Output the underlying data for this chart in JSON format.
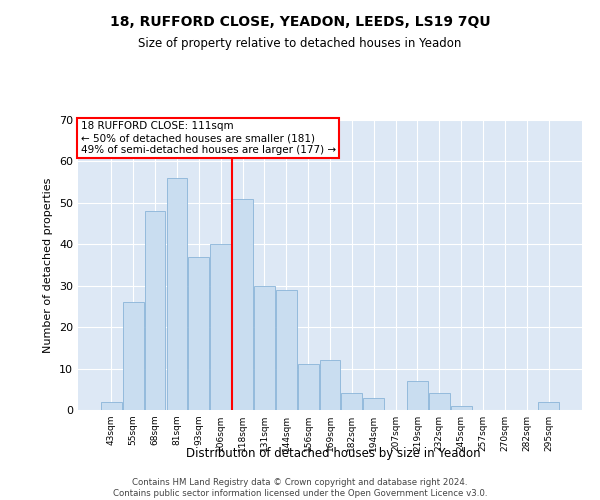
{
  "title1": "18, RUFFORD CLOSE, YEADON, LEEDS, LS19 7QU",
  "title2": "Size of property relative to detached houses in Yeadon",
  "xlabel": "Distribution of detached houses by size in Yeadon",
  "ylabel": "Number of detached properties",
  "categories": [
    "43sqm",
    "55sqm",
    "68sqm",
    "81sqm",
    "93sqm",
    "106sqm",
    "118sqm",
    "131sqm",
    "144sqm",
    "156sqm",
    "169sqm",
    "182sqm",
    "194sqm",
    "207sqm",
    "219sqm",
    "232sqm",
    "245sqm",
    "257sqm",
    "270sqm",
    "282sqm",
    "295sqm"
  ],
  "values": [
    2,
    26,
    48,
    56,
    37,
    40,
    51,
    30,
    29,
    11,
    12,
    4,
    3,
    0,
    7,
    4,
    1,
    0,
    0,
    0,
    2
  ],
  "bar_color": "#c9ddf0",
  "bar_edge_color": "#8ab4d8",
  "background_color": "#dde8f5",
  "annotation_line1": "18 RUFFORD CLOSE: 111sqm",
  "annotation_line2": "← 50% of detached houses are smaller (181)",
  "annotation_line3": "49% of semi-detached houses are larger (177) →",
  "vline_color": "red",
  "vline_x": 5.5,
  "ylim": [
    0,
    70
  ],
  "yticks": [
    0,
    10,
    20,
    30,
    40,
    50,
    60,
    70
  ],
  "footer1": "Contains HM Land Registry data © Crown copyright and database right 2024.",
  "footer2": "Contains public sector information licensed under the Open Government Licence v3.0."
}
